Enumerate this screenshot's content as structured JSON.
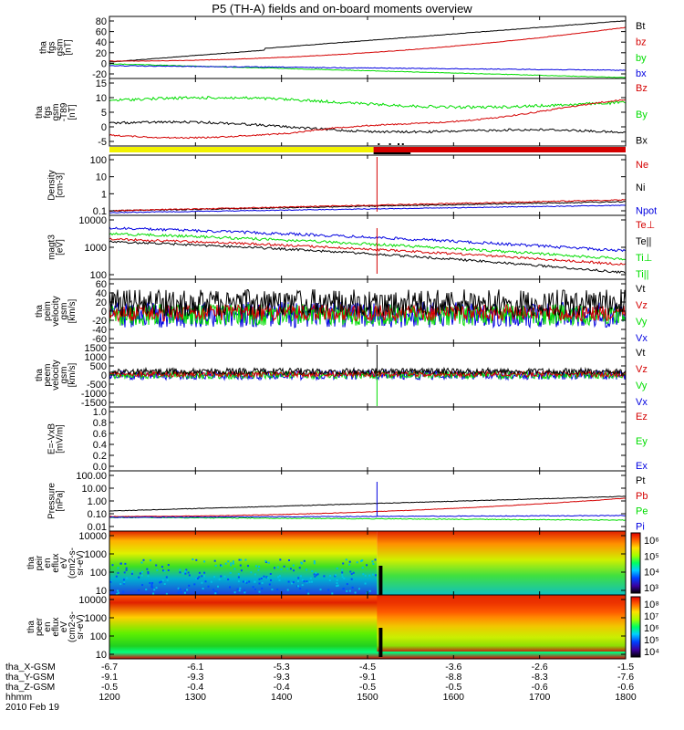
{
  "title": "P5 (TH-A) fields and on-board moments overview",
  "colors": {
    "black": "#000000",
    "red": "#d40000",
    "green": "#00dd00",
    "blue": "#0000e0",
    "yellow": "#f2f200"
  },
  "chart_data": {
    "type": "line",
    "x_minutes": [
      1200,
      1800
    ],
    "x_ticks": [
      "1200",
      "1300",
      "1400",
      "1500",
      "1600",
      "1700",
      "1800"
    ],
    "panels": [
      {
        "ylabel": [
          "tha",
          "fgs",
          "gsm",
          "[nT]"
        ],
        "yticks": [
          "80",
          "60",
          "40",
          "20",
          "0",
          "-20"
        ],
        "legend": [
          {
            "t": "Bt",
            "c": "black"
          },
          {
            "t": "bz",
            "c": "red"
          },
          {
            "t": "by",
            "c": "green"
          },
          {
            "t": "bx",
            "c": "blue"
          }
        ]
      },
      {
        "ylabel": [
          "tha",
          "fgs",
          "gsm",
          "-T89",
          "[nT]"
        ],
        "yticks": [
          "15",
          "10",
          "5",
          "0",
          "-5"
        ],
        "legend": [
          {
            "t": "Bz",
            "c": "red"
          },
          {
            "t": "By",
            "c": "green"
          },
          {
            "t": "Bx",
            "c": "black"
          }
        ]
      },
      {
        "ylabel": [
          "Density",
          "[cm-3]"
        ],
        "yticks": [
          "100",
          "10",
          "1",
          "0.1"
        ],
        "legend": [
          {
            "t": "Ne",
            "c": "red"
          },
          {
            "t": "Ni",
            "c": "black"
          },
          {
            "t": "Npot",
            "c": "blue"
          }
        ]
      },
      {
        "ylabel": [
          "magt3",
          "[eV]"
        ],
        "yticks": [
          "10000",
          "1000",
          "100"
        ],
        "legend": [
          {
            "t": "Te⊥",
            "c": "red"
          },
          {
            "t": "Te||",
            "c": "black"
          },
          {
            "t": "Ti⊥",
            "c": "green"
          },
          {
            "t": "Ti||",
            "c": "green"
          }
        ]
      },
      {
        "ylabel": [
          "tha",
          "peim",
          "velocity",
          "gsm",
          "[km/s]"
        ],
        "yticks": [
          "60",
          "40",
          "20",
          "0",
          "-20",
          "-40",
          "-60"
        ],
        "legend": [
          {
            "t": "Vt",
            "c": "black"
          },
          {
            "t": "Vz",
            "c": "red"
          },
          {
            "t": "Vy",
            "c": "green"
          },
          {
            "t": "Vx",
            "c": "blue"
          }
        ]
      },
      {
        "ylabel": [
          "tha",
          "peem",
          "velocity",
          "gsm",
          "[km/s]"
        ],
        "yticks": [
          "1500",
          "1000",
          "500",
          "0",
          "-500",
          "-1000",
          "-1500"
        ],
        "legend": [
          {
            "t": "Vt",
            "c": "black"
          },
          {
            "t": "Vz",
            "c": "red"
          },
          {
            "t": "Vy",
            "c": "green"
          },
          {
            "t": "Vx",
            "c": "blue"
          }
        ]
      },
      {
        "ylabel": [
          "E=-VxB",
          "[mV/m]"
        ],
        "yticks": [
          "1.0",
          "0.8",
          "0.6",
          "0.4",
          "0.2",
          "0.0"
        ],
        "legend": [
          {
            "t": "Ez",
            "c": "red"
          },
          {
            "t": "Ey",
            "c": "green"
          },
          {
            "t": "Ex",
            "c": "blue"
          }
        ]
      },
      {
        "ylabel": [
          "Pressure",
          "[nPa]"
        ],
        "yticks": [
          "100.00",
          "10.00",
          "1.00",
          "0.10",
          "0.01"
        ],
        "legend": [
          {
            "t": "Pt",
            "c": "black"
          },
          {
            "t": "Pb",
            "c": "red"
          },
          {
            "t": "Pe",
            "c": "green"
          },
          {
            "t": "Pi",
            "c": "blue"
          }
        ]
      },
      {
        "ylabel": [
          "tha",
          "peir",
          "en",
          "eflux",
          "eV",
          "(cm2-s-",
          "sr-eV)"
        ],
        "yticks": [
          "10000",
          "1000",
          "100",
          "10"
        ],
        "colorbar": [
          "10⁶",
          "10⁵",
          "10⁴",
          "10³"
        ]
      },
      {
        "ylabel": [
          "tha",
          "peer",
          "en",
          "eflux",
          "eV",
          "(cm2-s-",
          "sr-eV)"
        ],
        "yticks": [
          "10000",
          "1000",
          "100",
          "10"
        ],
        "colorbar": [
          "10⁸",
          "10⁷",
          "10⁶",
          "10⁵",
          "10⁴"
        ]
      }
    ],
    "ephemeris": [
      {
        "label": "tha_X-GSM",
        "values": [
          "-6.7",
          "-6.1",
          "-5.3",
          "-4.5",
          "-3.6",
          "-2.6",
          "-1.5"
        ]
      },
      {
        "label": "tha_Y-GSM",
        "values": [
          "-9.1",
          "-9.3",
          "-9.3",
          "-9.1",
          "-8.8",
          "-8.3",
          "-7.6"
        ]
      },
      {
        "label": "tha_Z-GSM",
        "values": [
          "-0.5",
          "-0.4",
          "-0.4",
          "-0.5",
          "-0.5",
          "-0.6",
          "-0.6"
        ]
      },
      {
        "label": "hhmm",
        "values": [
          "1200",
          "1300",
          "1400",
          "1500",
          "1600",
          "1700",
          "1800"
        ]
      }
    ],
    "date": "2010 Feb 19"
  }
}
